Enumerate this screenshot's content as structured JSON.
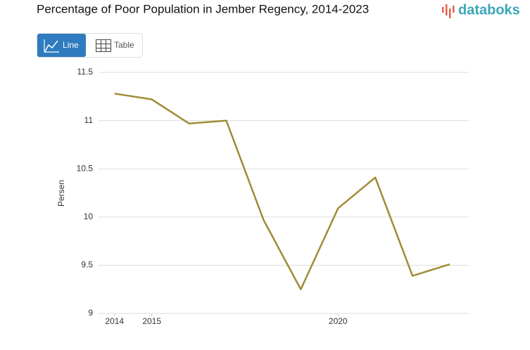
{
  "brand": "databoks",
  "controls": {
    "line": "Line",
    "table": "Table"
  },
  "chart_data": {
    "type": "line",
    "title": "Percentage of Poor Population in Jember Regency, 2014-2023",
    "y_label": "Persen",
    "x": [
      2014,
      2015,
      2016,
      2017,
      2018,
      2019,
      2020,
      2021,
      2022,
      2023
    ],
    "values": [
      11.28,
      11.22,
      10.97,
      11.0,
      9.97,
      9.25,
      10.09,
      10.41,
      9.39,
      9.51
    ],
    "color": "#a08c35",
    "xlim": [
      2013.57,
      2023.51
    ],
    "xticks": [
      2014,
      2015,
      2020
    ],
    "ylim": [
      9,
      11.5
    ],
    "yticks": [
      9,
      9.5,
      10,
      10.5,
      11,
      11.5
    ],
    "grid": true
  }
}
